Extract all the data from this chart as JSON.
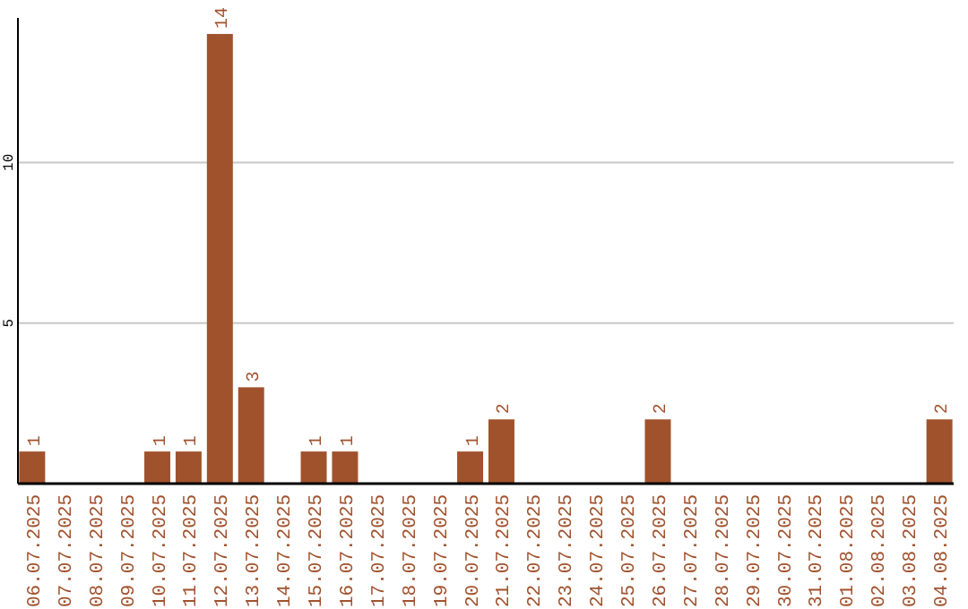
{
  "chart_data": {
    "type": "bar",
    "categories": [
      "06.07.2025",
      "07.07.2025",
      "08.07.2025",
      "09.07.2025",
      "10.07.2025",
      "11.07.2025",
      "12.07.2025",
      "13.07.2025",
      "14.07.2025",
      "15.07.2025",
      "16.07.2025",
      "17.07.2025",
      "18.07.2025",
      "19.07.2025",
      "20.07.2025",
      "21.07.2025",
      "22.07.2025",
      "23.07.2025",
      "24.07.2025",
      "25.07.2025",
      "26.07.2025",
      "27.07.2025",
      "28.07.2025",
      "29.07.2025",
      "30.07.2025",
      "31.07.2025",
      "01.08.2025",
      "02.08.2025",
      "03.08.2025",
      "04.08.2025"
    ],
    "values": [
      1,
      0,
      0,
      0,
      1,
      1,
      14,
      3,
      0,
      1,
      1,
      0,
      0,
      0,
      1,
      2,
      0,
      0,
      0,
      0,
      2,
      0,
      0,
      0,
      0,
      0,
      0,
      0,
      0,
      2
    ],
    "value_labels": [
      "1",
      null,
      null,
      null,
      "1",
      "1",
      "14",
      "3",
      null,
      "1",
      "1",
      null,
      null,
      null,
      "1",
      "2",
      null,
      null,
      null,
      null,
      "2",
      null,
      null,
      null,
      null,
      null,
      null,
      null,
      null,
      "2"
    ],
    "color": "#a0522d",
    "ylim": [
      0,
      14.5
    ],
    "yticks": [
      5,
      10
    ],
    "grid": "y"
  }
}
